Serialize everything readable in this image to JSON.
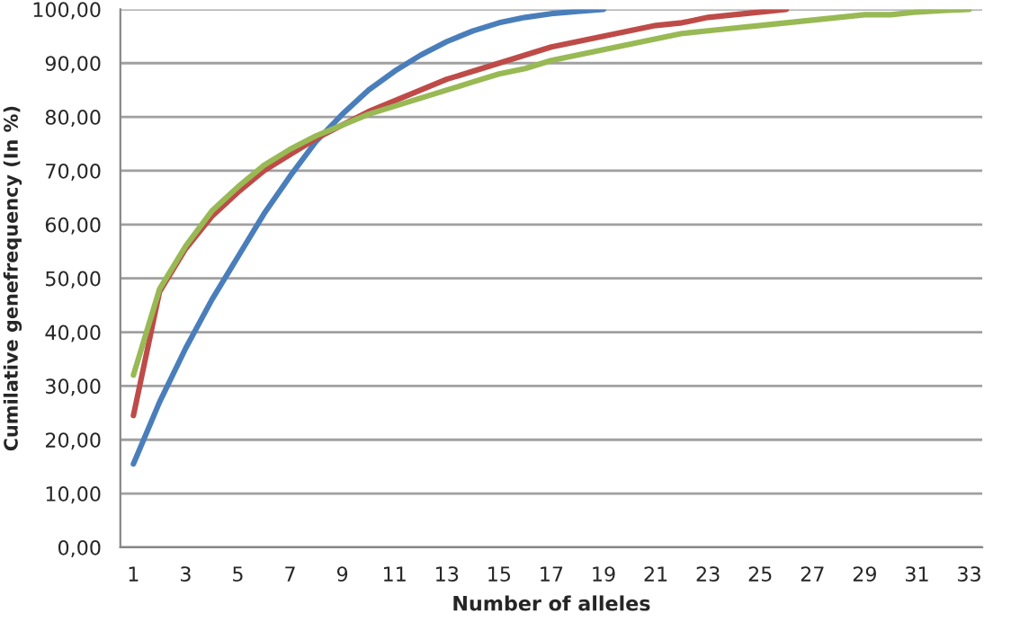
{
  "chart_data": {
    "type": "line",
    "xlabel": "Number of alleles",
    "ylabel": "Cumilative genefrequency (In %)",
    "categories": [
      "1",
      null,
      "3",
      null,
      "5",
      null,
      "7",
      null,
      "9",
      null,
      "11",
      null,
      "13",
      null,
      "15",
      null,
      "17",
      null,
      "19",
      null,
      "21",
      null,
      "23",
      null,
      "25",
      null,
      "27",
      null,
      "29",
      null,
      "31",
      null,
      "33"
    ],
    "series": [
      {
        "color": "#4a7ebb",
        "values": [
          15.5,
          27,
          37,
          46,
          54,
          62,
          69,
          75.5,
          80.5,
          85,
          88.5,
          91.5,
          94,
          96,
          97.5,
          98.5,
          99.2,
          99.6,
          100,
          null,
          null,
          null,
          null,
          null,
          null,
          null,
          null,
          null,
          null,
          null,
          null,
          null,
          null
        ]
      },
      {
        "color": "#be4b48",
        "values": [
          24.5,
          47.5,
          55.5,
          61.5,
          66,
          70,
          73,
          76,
          78.5,
          81,
          83,
          85,
          87,
          88.5,
          90,
          91.5,
          93,
          94,
          95,
          96,
          97,
          97.5,
          98.5,
          99,
          99.5,
          100,
          null,
          null,
          null,
          null,
          null,
          null,
          null
        ]
      },
      {
        "color": "#98b954",
        "values": [
          32,
          48,
          56,
          62.5,
          67,
          71,
          74,
          76.5,
          78.5,
          80.5,
          82,
          83.5,
          85,
          86.5,
          88,
          89,
          90.5,
          91.5,
          92.5,
          93.5,
          94.5,
          95.5,
          96,
          96.5,
          97,
          97.5,
          98,
          98.5,
          99,
          99,
          99.5,
          99.8,
          100
        ]
      }
    ],
    "ylim": [
      0,
      100
    ],
    "yticks": [
      {
        "value": 0,
        "label": "0,00"
      },
      {
        "value": 10,
        "label": "10,00"
      },
      {
        "value": 20,
        "label": "20,00"
      },
      {
        "value": 30,
        "label": "30,00"
      },
      {
        "value": 40,
        "label": "40,00"
      },
      {
        "value": 50,
        "label": "50,00"
      },
      {
        "value": 60,
        "label": "60,00"
      },
      {
        "value": 70,
        "label": "70,00"
      },
      {
        "value": 80,
        "label": "80,00"
      },
      {
        "value": 90,
        "label": "90,00"
      },
      {
        "value": 100,
        "label": "100,00"
      }
    ],
    "grid": "y",
    "marker": "none",
    "line_style": "solid"
  }
}
